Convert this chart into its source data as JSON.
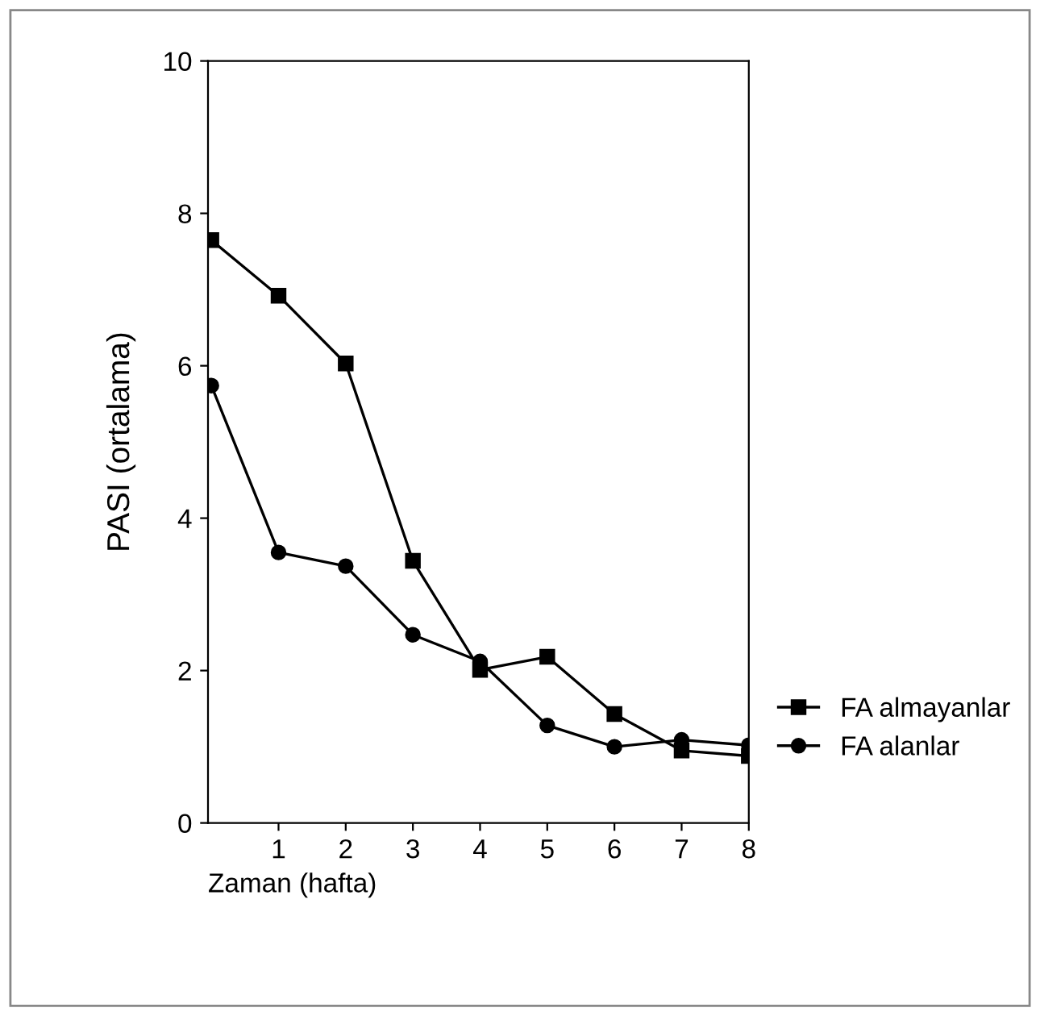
{
  "chart_data": {
    "type": "line",
    "xlabel": "Zaman (hafta)",
    "ylabel": "PASI (ortalama)",
    "x": [
      0,
      1,
      2,
      3,
      4,
      5,
      6,
      7,
      8
    ],
    "xlim": [
      -0.05,
      8
    ],
    "ylim": [
      0,
      10
    ],
    "xticks": [
      1,
      2,
      3,
      4,
      5,
      6,
      7,
      8
    ],
    "yticks": [
      0,
      2,
      4,
      6,
      8,
      10
    ],
    "grid": false,
    "legend": "bottom right",
    "series": [
      {
        "name": "FA almayanlar",
        "color": "#000000",
        "marker": "square",
        "values": [
          7.65,
          6.92,
          6.03,
          3.44,
          2.01,
          2.18,
          1.43,
          0.95,
          0.88
        ]
      },
      {
        "name": "FA alanlar",
        "color": "#000000",
        "marker": "circle",
        "values": [
          5.74,
          3.55,
          3.37,
          2.47,
          2.12,
          1.28,
          1.0,
          1.09,
          1.02
        ]
      }
    ]
  }
}
